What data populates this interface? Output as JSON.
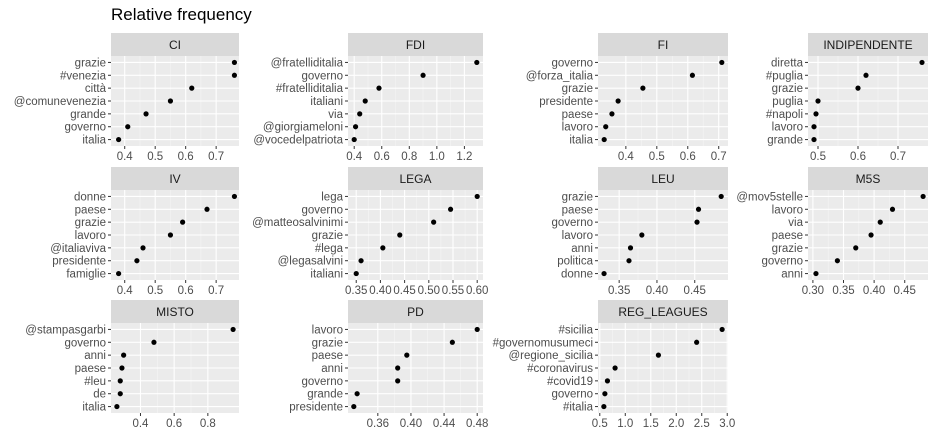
{
  "chart_data": {
    "type": "scatter",
    "title": "Relative frequency",
    "xlabel": "",
    "ylabel": "",
    "grid": true,
    "panels": [
      {
        "name": "CI",
        "categories": [
          "grazie",
          "#venezia",
          "città",
          "@comunevenezia",
          "grande",
          "governo",
          "italia"
        ],
        "values": [
          0.76,
          0.76,
          0.62,
          0.55,
          0.47,
          0.41,
          0.38
        ],
        "xlim": [
          0.355,
          0.775
        ],
        "ticks": [
          0.4,
          0.5,
          0.6,
          0.7
        ],
        "tick_labels": [
          "0.4",
          "0.5",
          "0.6",
          "0.7"
        ]
      },
      {
        "name": "FDI",
        "categories": [
          "@fratelliditalia",
          "governo",
          "#fratelliditalia",
          "italiani",
          "via",
          "@giorgiameloni",
          "@vocedelpatriota"
        ],
        "values": [
          1.29,
          0.9,
          0.58,
          0.48,
          0.44,
          0.41,
          0.4
        ],
        "xlim": [
          0.355,
          1.335
        ],
        "ticks": [
          0.4,
          0.6,
          0.8,
          1.0,
          1.2
        ],
        "tick_labels": [
          "0.4",
          "0.6",
          "0.8",
          "1.0",
          "1.2"
        ]
      },
      {
        "name": "FI",
        "categories": [
          "governo",
          "@forza_italia",
          "grazie",
          "presidente",
          "paese",
          "lavoro",
          "italia"
        ],
        "values": [
          0.71,
          0.615,
          0.455,
          0.375,
          0.355,
          0.335,
          0.33
        ],
        "xlim": [
          0.31,
          0.73
        ],
        "ticks": [
          0.4,
          0.5,
          0.6,
          0.7
        ],
        "tick_labels": [
          "0.4",
          "0.5",
          "0.6",
          "0.7"
        ]
      },
      {
        "name": "INDIPENDENTE",
        "categories": [
          "diretta",
          "#puglia",
          "grazie",
          "puglia",
          "#napoli",
          "lavoro",
          "grande"
        ],
        "values": [
          0.76,
          0.62,
          0.6,
          0.5,
          0.495,
          0.49,
          0.49
        ],
        "xlim": [
          0.475,
          0.775
        ],
        "ticks": [
          0.5,
          0.6,
          0.7
        ],
        "tick_labels": [
          "0.5",
          "0.6",
          "0.7"
        ]
      },
      {
        "name": "IV",
        "categories": [
          "donne",
          "paese",
          "grazie",
          "lavoro",
          "@italiaviva",
          "presidente",
          "famiglie"
        ],
        "values": [
          0.76,
          0.67,
          0.59,
          0.55,
          0.46,
          0.44,
          0.38
        ],
        "xlim": [
          0.355,
          0.775
        ],
        "ticks": [
          0.4,
          0.5,
          0.6,
          0.7
        ],
        "tick_labels": [
          "0.4",
          "0.5",
          "0.6",
          "0.7"
        ]
      },
      {
        "name": "LEGA",
        "categories": [
          "lega",
          "governo",
          "@matteosalvinimi",
          "grazie",
          "#lega",
          "@legasalvini",
          "italiani"
        ],
        "values": [
          0.6,
          0.545,
          0.51,
          0.44,
          0.405,
          0.36,
          0.35
        ],
        "xlim": [
          0.333,
          0.612
        ],
        "ticks": [
          0.35,
          0.4,
          0.45,
          0.5,
          0.55,
          0.6
        ],
        "tick_labels": [
          "0.35",
          "0.40",
          "0.45",
          "0.50",
          "0.55",
          "0.60"
        ]
      },
      {
        "name": "LEU",
        "categories": [
          "grazie",
          "paese",
          "governo",
          "lavoro",
          "anni",
          "politica",
          "donne"
        ],
        "values": [
          0.485,
          0.455,
          0.453,
          0.38,
          0.365,
          0.363,
          0.33
        ],
        "xlim": [
          0.322,
          0.494
        ],
        "ticks": [
          0.35,
          0.4,
          0.45
        ],
        "tick_labels": [
          "0.35",
          "0.40",
          "0.45"
        ]
      },
      {
        "name": "M5S",
        "categories": [
          "@mov5stelle",
          "lavoro",
          "via",
          "paese",
          "grazie",
          "governo",
          "anni"
        ],
        "values": [
          0.48,
          0.43,
          0.41,
          0.395,
          0.37,
          0.34,
          0.305
        ],
        "xlim": [
          0.292,
          0.488
        ],
        "ticks": [
          0.3,
          0.35,
          0.4,
          0.45
        ],
        "tick_labels": [
          "0.30",
          "0.35",
          "0.40",
          "0.45"
        ]
      },
      {
        "name": "MISTO",
        "categories": [
          "@stampasgarbi",
          "governo",
          "anni",
          "paese",
          "#leu",
          "de",
          "italia"
        ],
        "values": [
          0.95,
          0.48,
          0.3,
          0.29,
          0.28,
          0.28,
          0.26
        ],
        "xlim": [
          0.225,
          0.985
        ],
        "ticks": [
          0.4,
          0.6,
          0.8
        ],
        "tick_labels": [
          "0.4",
          "0.6",
          "0.8"
        ]
      },
      {
        "name": "PD",
        "categories": [
          "lavoro",
          "grazie",
          "paese",
          "anni",
          "governo",
          "grande",
          "presidente"
        ],
        "values": [
          0.48,
          0.45,
          0.395,
          0.384,
          0.384,
          0.335,
          0.331
        ],
        "xlim": [
          0.324,
          0.487
        ],
        "ticks": [
          0.36,
          0.4,
          0.44,
          0.48
        ],
        "tick_labels": [
          "0.36",
          "0.40",
          "0.44",
          "0.48"
        ]
      },
      {
        "name": "REG_LEAGUES",
        "categories": [
          "#sicilia",
          "#governomusumeci",
          "@regione_sicilia",
          "#coronavirus",
          "#covid19",
          "governo",
          "#italia"
        ],
        "values": [
          2.9,
          2.4,
          1.65,
          0.8,
          0.65,
          0.6,
          0.58
        ],
        "xlim": [
          0.465,
          3.015
        ],
        "ticks": [
          0.5,
          1.0,
          1.5,
          2.0,
          2.5,
          3.0
        ],
        "tick_labels": [
          "0.5",
          "1.0",
          "1.5",
          "2.0",
          "2.5",
          "3.0"
        ]
      }
    ]
  }
}
